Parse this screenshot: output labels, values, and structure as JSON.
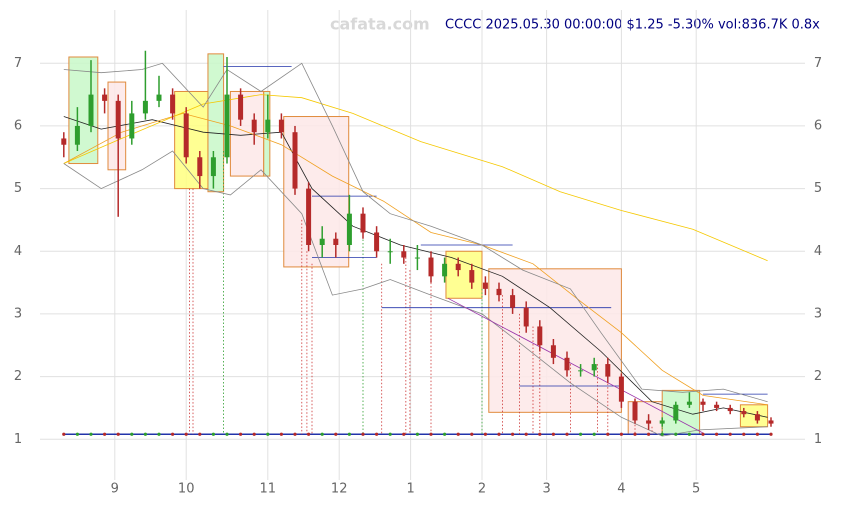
{
  "chart_data": {
    "type": "candlestick",
    "title": "CCCC 2025.05.30 00:00:00 $1.25 -5.30% vol:836.7K 0.8x",
    "watermark": "cafata.com",
    "xlim": [
      -22,
      203
    ],
    "ylim": [
      0.35,
      7.85
    ],
    "xticks": [
      {
        "value": 0,
        "label": "9"
      },
      {
        "value": 21,
        "label": "10"
      },
      {
        "value": 45,
        "label": "11"
      },
      {
        "value": 66,
        "label": "12"
      },
      {
        "value": 87,
        "label": "1"
      },
      {
        "value": 108,
        "label": "2"
      },
      {
        "value": 127,
        "label": "3"
      },
      {
        "value": 149,
        "label": "4"
      },
      {
        "value": 171,
        "label": "5"
      }
    ],
    "yticks": [
      1,
      2,
      3,
      4,
      5,
      6,
      7
    ],
    "grid": true,
    "up_color": "#2e9e2e",
    "down_color": "#b52a2a",
    "x": [
      -15,
      -11,
      -7,
      -3,
      1,
      5,
      9,
      13,
      17,
      21,
      25,
      29,
      33,
      37,
      41,
      45,
      49,
      53,
      57,
      61,
      65,
      69,
      73,
      77,
      81,
      85,
      89,
      93,
      97,
      101,
      105,
      109,
      113,
      117,
      121,
      125,
      129,
      133,
      137,
      141,
      145,
      149,
      153,
      157,
      161,
      165,
      169,
      173,
      177,
      181,
      185,
      189,
      193
    ],
    "open": [
      5.8,
      5.7,
      6.0,
      6.5,
      6.4,
      5.8,
      6.2,
      6.4,
      6.5,
      6.2,
      5.5,
      5.2,
      5.5,
      6.5,
      6.1,
      5.9,
      6.1,
      5.9,
      5.0,
      4.1,
      4.2,
      4.1,
      4.6,
      4.3,
      4.0,
      4.0,
      3.9,
      3.9,
      3.6,
      3.8,
      3.7,
      3.5,
      3.4,
      3.3,
      3.1,
      2.8,
      2.5,
      2.3,
      2.1,
      2.1,
      2.2,
      2.0,
      1.6,
      1.3,
      1.25,
      1.3,
      1.55,
      1.6,
      1.55,
      1.5,
      1.45,
      1.4,
      1.3
    ],
    "high": [
      5.9,
      6.3,
      7.05,
      6.6,
      6.5,
      6.4,
      7.2,
      6.8,
      6.6,
      6.3,
      5.6,
      5.6,
      7.1,
      6.6,
      6.2,
      6.5,
      6.2,
      6.0,
      5.1,
      4.4,
      4.3,
      4.9,
      4.7,
      4.4,
      4.2,
      4.1,
      4.1,
      4.0,
      3.9,
      3.9,
      3.8,
      3.6,
      3.5,
      3.4,
      3.2,
      2.9,
      2.6,
      2.4,
      2.2,
      2.3,
      2.3,
      2.05,
      1.65,
      1.4,
      1.35,
      1.6,
      1.75,
      1.65,
      1.6,
      1.55,
      1.5,
      1.45,
      1.35
    ],
    "low": [
      5.5,
      5.6,
      5.9,
      6.2,
      4.55,
      5.7,
      6.1,
      6.3,
      6.1,
      5.4,
      5.0,
      5.0,
      5.4,
      6.0,
      5.7,
      5.8,
      5.8,
      4.9,
      4.0,
      3.9,
      3.9,
      4.0,
      4.2,
      3.9,
      3.8,
      3.8,
      3.7,
      3.5,
      3.5,
      3.6,
      3.4,
      3.3,
      3.2,
      3.0,
      2.7,
      2.4,
      2.2,
      2.0,
      2.0,
      2.0,
      1.9,
      1.5,
      1.25,
      1.15,
      1.2,
      1.25,
      1.5,
      1.45,
      1.45,
      1.4,
      1.35,
      1.25,
      1.2
    ],
    "close": [
      5.7,
      6.0,
      6.5,
      6.4,
      5.8,
      6.2,
      6.4,
      6.5,
      6.2,
      5.5,
      5.2,
      5.5,
      6.5,
      6.1,
      5.9,
      6.1,
      5.9,
      5.0,
      4.1,
      4.2,
      4.1,
      4.6,
      4.3,
      4.0,
      4.0,
      3.9,
      3.9,
      3.6,
      3.8,
      3.7,
      3.5,
      3.4,
      3.3,
      3.1,
      2.8,
      2.5,
      2.3,
      2.1,
      2.1,
      2.2,
      2.0,
      1.6,
      1.3,
      1.25,
      1.3,
      1.55,
      1.6,
      1.55,
      1.5,
      1.45,
      1.4,
      1.3,
      1.25
    ],
    "overlays": [
      {
        "color": "#222222",
        "x": [
          -15,
          -4,
          11,
          26,
          37,
          49,
          58,
          70,
          84,
          99,
          114,
          128,
          143,
          158,
          170,
          179,
          192
        ],
        "values": [
          6.15,
          5.95,
          6.1,
          5.9,
          5.85,
          5.9,
          5.0,
          4.4,
          4.1,
          3.9,
          3.6,
          3.1,
          2.4,
          1.6,
          1.4,
          1.5,
          1.35
        ]
      },
      {
        "color": "#f0a020",
        "x": [
          -15,
          2,
          20,
          34,
          49,
          64,
          79,
          93,
          108,
          123,
          137,
          149,
          161,
          173,
          192
        ],
        "values": [
          5.4,
          5.9,
          6.2,
          6.0,
          5.7,
          5.2,
          4.8,
          4.3,
          4.1,
          3.8,
          3.2,
          2.7,
          2.1,
          1.7,
          1.55
        ]
      },
      {
        "color": "#f5c800",
        "x": [
          -15,
          2,
          26,
          43,
          55,
          70,
          90,
          114,
          131,
          149,
          170,
          192
        ],
        "values": [
          5.4,
          5.8,
          6.35,
          6.5,
          6.45,
          6.2,
          5.75,
          5.35,
          4.95,
          4.65,
          4.35,
          3.85
        ]
      },
      {
        "color": "#888888",
        "x": [
          -15,
          -4,
          8,
          14,
          26,
          33,
          43,
          55,
          64,
          73,
          81,
          93,
          108,
          120,
          134,
          143,
          155,
          167,
          179,
          192
        ],
        "values": [
          6.9,
          6.85,
          6.9,
          7.0,
          6.3,
          6.9,
          6.55,
          7.0,
          6.0,
          4.95,
          4.6,
          4.4,
          4.1,
          3.7,
          3.4,
          2.7,
          1.8,
          1.75,
          1.8,
          1.6
        ]
      },
      {
        "color": "#888888",
        "x": [
          -15,
          -4,
          8,
          17,
          26,
          34,
          43,
          55,
          64,
          73,
          81,
          93,
          108,
          120,
          134,
          149,
          161,
          172,
          192
        ],
        "values": [
          5.4,
          5.0,
          5.3,
          5.6,
          5.0,
          4.9,
          5.3,
          4.6,
          3.3,
          3.4,
          3.55,
          3.3,
          3.0,
          2.5,
          1.9,
          1.35,
          1.05,
          1.15,
          1.2
        ]
      },
      {
        "color": "#9933aa",
        "x": [
          98,
          173
        ],
        "values": [
          3.25,
          1.1
        ]
      }
    ],
    "boxes": [
      {
        "x": [
          -13.5,
          -5
        ],
        "y": [
          5.4,
          7.1
        ],
        "color": "#c8f8c8"
      },
      {
        "x": [
          -2,
          3.2
        ],
        "y": [
          5.3,
          6.7
        ],
        "color": "#fde8e8"
      },
      {
        "x": [
          17.6,
          27.4
        ],
        "y": [
          5.0,
          6.55
        ],
        "color": "#ffff80"
      },
      {
        "x": [
          27.4,
          32
        ],
        "y": [
          4.95,
          7.15
        ],
        "color": "#c8f8c8"
      },
      {
        "x": [
          34,
          43.8
        ],
        "y": [
          5.2,
          6.55
        ],
        "color": "#fde8e8"
      },
      {
        "x": [
          43.8,
          45.6
        ],
        "y": [
          5.2,
          6.55
        ],
        "color": "#c8f8c8"
      },
      {
        "x": [
          49.7,
          68.8
        ],
        "y": [
          3.75,
          6.15
        ],
        "color": "#fde8e8"
      },
      {
        "x": [
          97.4,
          108
        ],
        "y": [
          3.25,
          4.0
        ],
        "color": "#ffff80"
      },
      {
        "x": [
          110,
          149
        ],
        "y": [
          1.43,
          3.72
        ],
        "color": "#fde8e8"
      },
      {
        "x": [
          151,
          161
        ],
        "y": [
          1.08,
          1.6
        ],
        "color": "#fde8e8"
      },
      {
        "x": [
          161,
          172
        ],
        "y": [
          1.08,
          1.78
        ],
        "color": "#c8f8c8"
      },
      {
        "x": [
          184,
          192
        ],
        "y": [
          1.2,
          1.55
        ],
        "color": "#ffff80"
      }
    ],
    "box_border": "#e08a3c",
    "levels": [
      {
        "x": [
          32,
          52
        ],
        "y": 6.95
      },
      {
        "x": [
          58,
          77
        ],
        "y": 4.88
      },
      {
        "x": [
          58,
          77
        ],
        "y": 3.9
      },
      {
        "x": [
          90,
          117
        ],
        "y": 4.1
      },
      {
        "x": [
          78.5,
          146
        ],
        "y": 3.1
      },
      {
        "x": [
          119,
          149
        ],
        "y": 1.85
      },
      {
        "x": [
          173,
          192
        ],
        "y": 1.72
      }
    ],
    "level_color": "#2233aa",
    "baseline": 1.08,
    "signals": [
      {
        "x": 22,
        "y": 5.0,
        "color": "#cc3333"
      },
      {
        "x": 23,
        "y": 5.0,
        "color": "#cc3333"
      },
      {
        "x": 32,
        "y": 5.6,
        "color": "#2e9e2e"
      },
      {
        "x": 55,
        "y": 4.5,
        "color": "#cc3333"
      },
      {
        "x": 56.5,
        "y": 4.0,
        "color": "#cc3333"
      },
      {
        "x": 58,
        "y": 3.8,
        "color": "#cc3333"
      },
      {
        "x": 73,
        "y": 4.3,
        "color": "#2e9e2e"
      },
      {
        "x": 78.5,
        "y": 3.8,
        "color": "#cc3333"
      },
      {
        "x": 85.6,
        "y": 3.9,
        "color": "#cc3333"
      },
      {
        "x": 86.8,
        "y": 3.7,
        "color": "#cc3333"
      },
      {
        "x": 93,
        "y": 3.5,
        "color": "#cc3333"
      },
      {
        "x": 108,
        "y": 3.4,
        "color": "#2e9e2e"
      },
      {
        "x": 114,
        "y": 3.3,
        "color": "#cc3333"
      },
      {
        "x": 119,
        "y": 3.0,
        "color": "#cc3333"
      },
      {
        "x": 123,
        "y": 2.8,
        "color": "#cc3333"
      },
      {
        "x": 125,
        "y": 2.6,
        "color": "#cc3333"
      },
      {
        "x": 134,
        "y": 2.2,
        "color": "#cc3333"
      },
      {
        "x": 142,
        "y": 2.2,
        "color": "#cc3333"
      },
      {
        "x": 145,
        "y": 2.0,
        "color": "#cc3333"
      },
      {
        "x": 153,
        "y": 1.4,
        "color": "#cc3333"
      },
      {
        "x": 158,
        "y": 1.2,
        "color": "#cc3333"
      },
      {
        "x": 161,
        "y": 1.3,
        "color": "#2e9e2e"
      }
    ]
  }
}
